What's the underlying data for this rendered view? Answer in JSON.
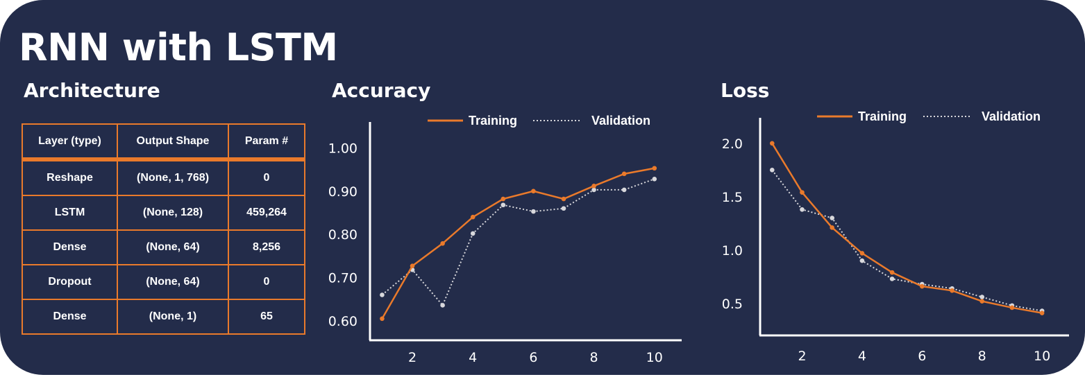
{
  "header": {
    "title": "RNN with LSTM"
  },
  "architecture": {
    "title": "Architecture",
    "columns": [
      "Layer (type)",
      "Output Shape",
      "Param #"
    ],
    "rows": [
      [
        "Reshape",
        "(None, 1, 768)",
        "0"
      ],
      [
        "LSTM",
        "(None, 128)",
        "459,264"
      ],
      [
        "Dense",
        "(None, 64)",
        "8,256"
      ],
      [
        "Dropout",
        "(None, 64)",
        "0"
      ],
      [
        "Dense",
        "(None, 1)",
        "65"
      ]
    ]
  },
  "colors": {
    "background": "#232c4a",
    "training": "#ea7a2b",
    "validation": "#d8d8dc",
    "axis": "#ffffff"
  },
  "chart_data": [
    {
      "type": "line",
      "title": "Accuracy",
      "xlabel": "",
      "ylabel": "",
      "x": [
        1,
        2,
        3,
        4,
        5,
        6,
        7,
        8,
        9,
        10
      ],
      "xticks": [
        2,
        4,
        6,
        8,
        10
      ],
      "xlim": [
        0.6,
        10.9
      ],
      "ylim": [
        0.555,
        1.06
      ],
      "yticks": [
        0.6,
        0.7,
        0.8,
        0.9,
        1.0
      ],
      "ytick_labels": [
        "0.60",
        "0.70",
        "0.80",
        "0.90",
        "1.00"
      ],
      "legend": "top",
      "series": [
        {
          "name": "Training",
          "style": "solid",
          "values": [
            0.605,
            0.727,
            0.779,
            0.84,
            0.882,
            0.9,
            0.882,
            0.912,
            0.94,
            0.953
          ]
        },
        {
          "name": "Validation",
          "style": "dotted",
          "values": [
            0.66,
            0.718,
            0.636,
            0.802,
            0.868,
            0.853,
            0.86,
            0.903,
            0.903,
            0.928
          ]
        }
      ]
    },
    {
      "type": "line",
      "title": "Loss",
      "xlabel": "",
      "ylabel": "",
      "x": [
        1,
        2,
        3,
        4,
        5,
        6,
        7,
        8,
        9,
        10
      ],
      "xticks": [
        2,
        4,
        6,
        8,
        10
      ],
      "xlim": [
        0.6,
        10.9
      ],
      "ylim": [
        0.2,
        2.2
      ],
      "yticks": [
        0.5,
        1.0,
        1.5,
        2.0
      ],
      "ytick_labels": [
        "0.5",
        "1.0",
        "1.5",
        "2.0"
      ],
      "legend": "top",
      "series": [
        {
          "name": "Training",
          "style": "solid",
          "values": [
            2.0,
            1.54,
            1.21,
            0.97,
            0.79,
            0.66,
            0.62,
            0.52,
            0.46,
            0.41
          ]
        },
        {
          "name": "Validation",
          "style": "dotted",
          "values": [
            1.75,
            1.38,
            1.3,
            0.9,
            0.73,
            0.68,
            0.64,
            0.56,
            0.48,
            0.43
          ]
        }
      ]
    }
  ]
}
